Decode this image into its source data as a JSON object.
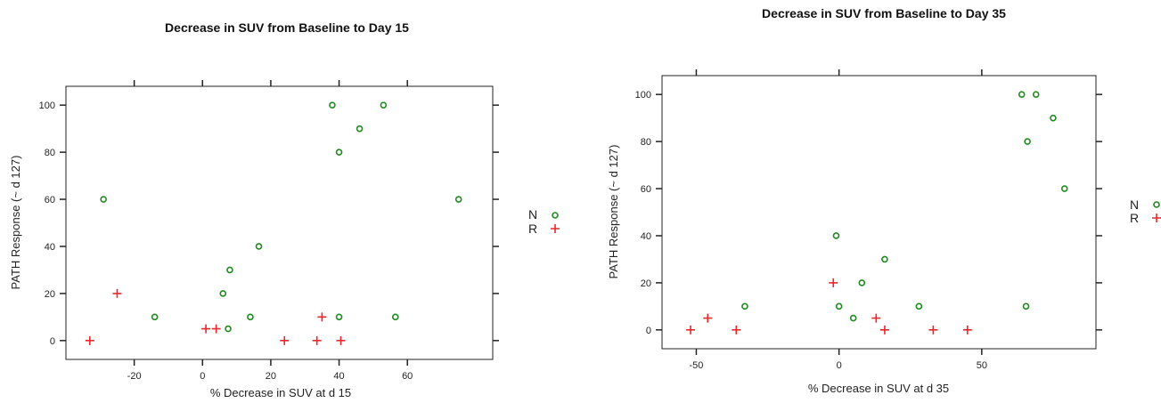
{
  "chart_data": [
    {
      "type": "scatter",
      "title": "Decrease in SUV from Baseline to Day 15",
      "xlabel": "% Decrease in SUV at d 15",
      "ylabel": "PATH Response (~ d 127)",
      "xlim": [
        -40,
        85
      ],
      "ylim": [
        -8,
        108
      ],
      "xticks": [
        -20,
        0,
        20,
        40,
        60
      ],
      "yticks": [
        0,
        20,
        40,
        60,
        80,
        100
      ],
      "legend": [
        {
          "label": "N",
          "marker": "circle",
          "color": "#1f8a1f"
        },
        {
          "label": "R",
          "marker": "plus",
          "color": "#e8292b"
        }
      ],
      "series": [
        {
          "name": "N",
          "points": [
            [
              -29,
              60
            ],
            [
              -14,
              10
            ],
            [
              6,
              20
            ],
            [
              7.5,
              5
            ],
            [
              8,
              30
            ],
            [
              14,
              10
            ],
            [
              16.5,
              40
            ],
            [
              38,
              100
            ],
            [
              40,
              80
            ],
            [
              40,
              10
            ],
            [
              46,
              90
            ],
            [
              53,
              100
            ],
            [
              56.5,
              10
            ],
            [
              75,
              60
            ]
          ]
        },
        {
          "name": "R",
          "points": [
            [
              -33,
              0
            ],
            [
              -25,
              20
            ],
            [
              1,
              5
            ],
            [
              4,
              5
            ],
            [
              24,
              0
            ],
            [
              33.5,
              0
            ],
            [
              35,
              10
            ],
            [
              40.5,
              0
            ]
          ]
        }
      ]
    },
    {
      "type": "scatter",
      "title": "Decrease in SUV from Baseline to Day 35",
      "xlabel": "% Decrease in SUV at d 35",
      "ylabel": "PATH Response (~ d 127)",
      "xlim": [
        -62,
        90
      ],
      "ylim": [
        -8,
        108
      ],
      "xticks": [
        -50,
        0,
        50
      ],
      "yticks": [
        0,
        20,
        40,
        60,
        80,
        100
      ],
      "legend": [
        {
          "label": "N",
          "marker": "circle",
          "color": "#1f8a1f"
        },
        {
          "label": "R",
          "marker": "plus",
          "color": "#e8292b"
        }
      ],
      "series": [
        {
          "name": "N",
          "points": [
            [
              -33,
              10
            ],
            [
              -1,
              40
            ],
            [
              0,
              10
            ],
            [
              5,
              5
            ],
            [
              8,
              20
            ],
            [
              16,
              30
            ],
            [
              28,
              10
            ],
            [
              64,
              100
            ],
            [
              65.5,
              10
            ],
            [
              66,
              80
            ],
            [
              69,
              100
            ],
            [
              75,
              90
            ],
            [
              79,
              60
            ]
          ]
        },
        {
          "name": "R",
          "points": [
            [
              -52,
              0
            ],
            [
              -46,
              5
            ],
            [
              -36,
              0
            ],
            [
              -2,
              20
            ],
            [
              13,
              5
            ],
            [
              16,
              0
            ],
            [
              33,
              0
            ],
            [
              45,
              0
            ]
          ]
        }
      ]
    }
  ]
}
